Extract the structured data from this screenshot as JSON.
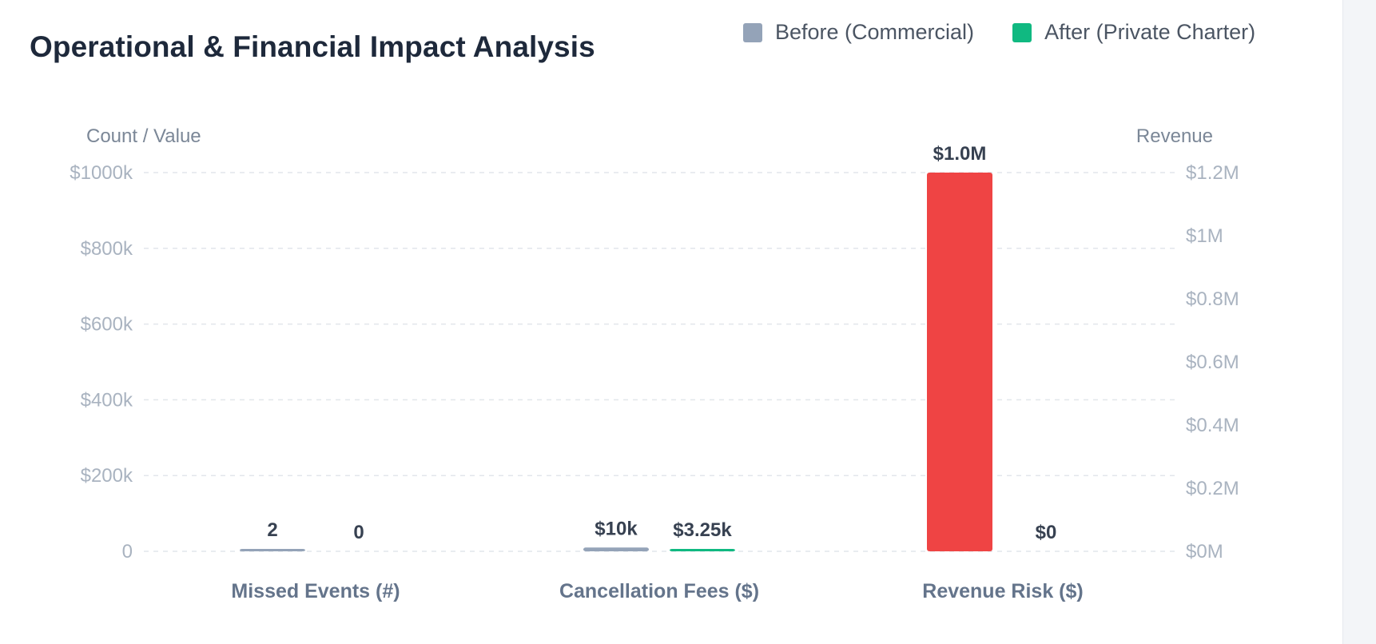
{
  "chart_data": {
    "type": "bar",
    "title": "Operational & Financial Impact Analysis",
    "categories": [
      "Missed Events (#)",
      "Cancellation Fees ($)",
      "Revenue Risk ($)"
    ],
    "series": [
      {
        "name": "Before (Commercial)",
        "values": [
          2,
          10000,
          1000000
        ],
        "labels": [
          "2",
          "$10k",
          "$1.0M"
        ],
        "color": "#94a3b8",
        "colors": [
          "#94a3b8",
          "#94a3b8",
          "#ef4444"
        ]
      },
      {
        "name": "After (Private Charter)",
        "values": [
          0,
          3250,
          0
        ],
        "labels": [
          "0",
          "$3.25k",
          "$0"
        ],
        "color": "#10b981",
        "colors": [
          "#10b981",
          "#10b981",
          "#10b981"
        ]
      }
    ],
    "y_left": {
      "label": "Count / Value",
      "ylim": [
        0,
        1000000
      ],
      "ticks": [
        0,
        200000,
        400000,
        600000,
        800000,
        1000000
      ],
      "tick_labels": [
        "0",
        "$200k",
        "$400k",
        "$600k",
        "$800k",
        "$1000k"
      ]
    },
    "y_right": {
      "label": "Revenue",
      "ylim": [
        0,
        1200000
      ],
      "ticks": [
        0,
        200000,
        400000,
        600000,
        800000,
        1000000,
        1200000
      ],
      "tick_labels": [
        "$0M",
        "$0.2M",
        "$0.4M",
        "$0.6M",
        "$0.8M",
        "$1M",
        "$1.2M"
      ]
    },
    "grid": true,
    "legend_position": "top-right"
  }
}
